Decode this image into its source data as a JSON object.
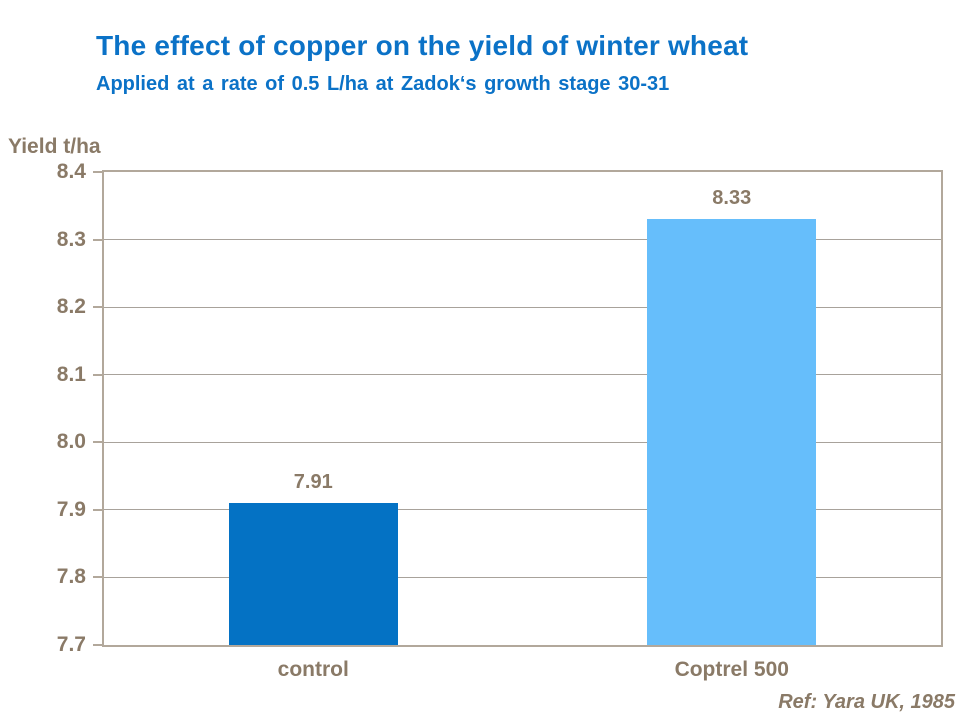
{
  "theme": {
    "background": "#FFFFFF",
    "title_blue": "#0B72C7",
    "text_brown": "#8A7A67",
    "grid_color": "#A8A29B",
    "axis_border_color": "#B2A89B"
  },
  "header": {
    "title": "The effect of copper on the yield of winter wheat",
    "subtitle": "Applied at a rate of 0.5 L/ha at Zadok‘s growth stage 30-31"
  },
  "footer": {
    "reference": "Ref: Yara UK, 1985"
  },
  "chart_data": {
    "type": "bar",
    "title": "The effect of copper on the yield of winter wheat",
    "subtitle": "Applied at a rate of 0.5 L/ha at Zadok‘s growth stage 30-31",
    "categories": [
      "control",
      "Coptrel 500"
    ],
    "values": [
      7.91,
      8.33
    ],
    "value_labels": [
      "7.91",
      "8.33"
    ],
    "bar_colors": [
      "#0472C4",
      "#66BEFB"
    ],
    "ylabel": "Yield t/ha",
    "xlabel": "",
    "ylim": [
      7.7,
      8.4
    ],
    "ytick_step": 0.1,
    "ytick_labels": [
      "8.4",
      "8.3",
      "8.2",
      "8.1",
      "8.0",
      "7.9",
      "7.8",
      "7.7"
    ],
    "grid": true,
    "legend": false,
    "annotation": "Ref: Yara UK, 1985"
  }
}
